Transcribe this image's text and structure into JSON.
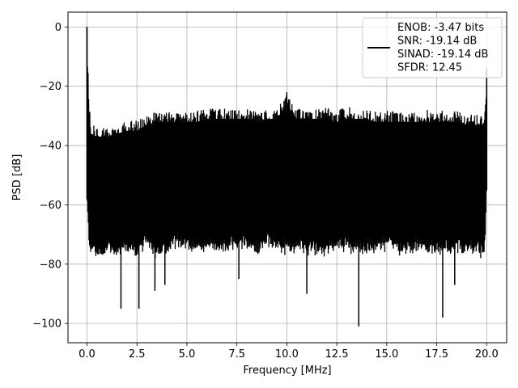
{
  "chart_data": {
    "type": "line",
    "title": "",
    "xlabel": "Frequency [MHz]",
    "ylabel": "PSD [dB]",
    "xlim": [
      -0.95,
      21.0
    ],
    "ylim": [
      -106.5,
      5.0
    ],
    "xticks": [
      0.0,
      2.5,
      5.0,
      7.5,
      10.0,
      12.5,
      15.0,
      17.5,
      20.0
    ],
    "xtick_labels": [
      "0.0",
      "2.5",
      "5.0",
      "7.5",
      "10.0",
      "12.5",
      "15.0",
      "17.5",
      "20.0"
    ],
    "yticks": [
      0,
      -20,
      -40,
      -60,
      -80,
      -100
    ],
    "ytick_labels": [
      "0",
      "−20",
      "−40",
      "−60",
      "−80",
      "−100"
    ],
    "grid": true,
    "legend": {
      "placement": "top-right",
      "entries": [
        "ENOB: -3.47 bits",
        "SNR: -19.14 dB",
        "SINAD: -19.14 dB",
        "SFDR: 12.45"
      ]
    },
    "series": [
      {
        "color": "#000000",
        "note_fields": "envelope of dense noise trace",
        "x": [
          0.0,
          0.1,
          0.2,
          0.5,
          1.0,
          1.5,
          2.0,
          2.5,
          3.0,
          3.5,
          4.0,
          4.5,
          5.0,
          5.5,
          6.0,
          6.5,
          7.0,
          7.5,
          8.0,
          8.5,
          9.0,
          9.5,
          10.0,
          10.5,
          11.0,
          11.5,
          12.0,
          12.5,
          13.0,
          13.5,
          14.0,
          14.5,
          15.0,
          15.5,
          16.0,
          16.5,
          17.0,
          17.5,
          18.0,
          18.5,
          19.0,
          19.5,
          19.9,
          20.0
        ],
        "upper": [
          0,
          -25,
          -32,
          -33,
          -33,
          -32,
          -31,
          -31,
          -29,
          -28,
          -28,
          -28,
          -28,
          -28,
          -27,
          -27,
          -27,
          -27,
          -27,
          -28,
          -27,
          -27,
          -22,
          -27,
          -27,
          -27,
          -27,
          -28,
          -27,
          -27,
          -27,
          -28,
          -28,
          -28,
          -28,
          -28,
          -28,
          -28,
          -28,
          -28,
          -29,
          -29,
          -29,
          -14
        ],
        "lower": [
          -58,
          -77,
          -77,
          -80,
          -78,
          -79,
          -78,
          -79,
          -75,
          -79,
          -78,
          -75,
          -76,
          -78,
          -77,
          -77,
          -77,
          -76,
          -76,
          -77,
          -75,
          -77,
          -77,
          -77,
          -77,
          -78,
          -78,
          -76,
          -77,
          -78,
          -77,
          -77,
          -76,
          -77,
          -78,
          -77,
          -77,
          -78,
          -78,
          -77,
          -78,
          -78,
          -78,
          -55
        ],
        "dips": [
          {
            "x": 1.7,
            "y": -95
          },
          {
            "x": 2.6,
            "y": -95
          },
          {
            "x": 3.4,
            "y": -89
          },
          {
            "x": 3.9,
            "y": -87
          },
          {
            "x": 7.6,
            "y": -85
          },
          {
            "x": 11.0,
            "y": -90
          },
          {
            "x": 13.6,
            "y": -101
          },
          {
            "x": 17.8,
            "y": -98
          },
          {
            "x": 18.4,
            "y": -87
          }
        ]
      }
    ]
  }
}
